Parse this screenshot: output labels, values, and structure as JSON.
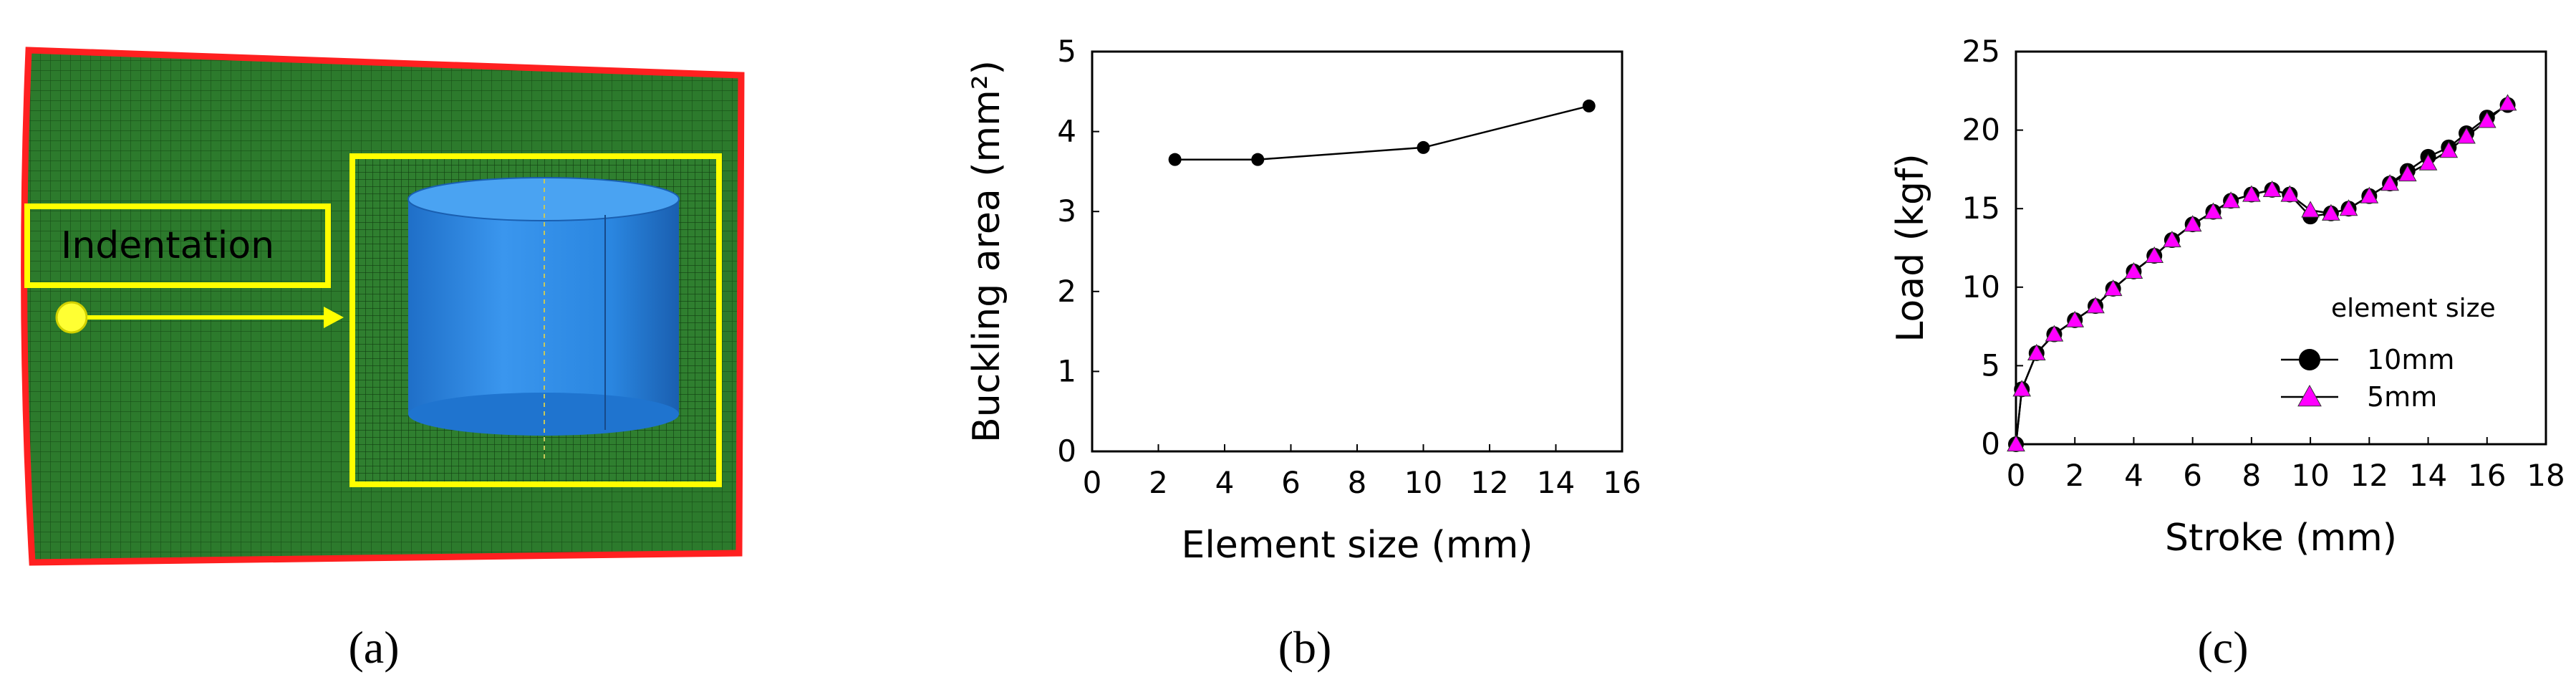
{
  "colors": {
    "mesh_green": "#2c7a2c",
    "mesh_line": "#174f17",
    "boundary_red": "#ff2020",
    "highlight_yellow": "#ffff00",
    "cylinder_blue": "#2a86e0",
    "point_black": "#000000",
    "point_magenta": "#ff00ff"
  },
  "panels": {
    "a": {
      "caption": "(a)",
      "indentation_label": "Indentation"
    },
    "b": {
      "caption": "(b)"
    },
    "c": {
      "caption": "(c)"
    }
  },
  "chart_data": [
    {
      "panel": "b",
      "type": "line",
      "xlabel": "Element size (mm)",
      "ylabel": "Buckling area (mm²)",
      "xlim": [
        0,
        16
      ],
      "ylim": [
        0,
        5
      ],
      "xticks": [
        "0",
        "2",
        "4",
        "6",
        "8",
        "10",
        "12",
        "14",
        "16"
      ],
      "yticks": [
        "0",
        "1",
        "2",
        "3",
        "4",
        "5"
      ],
      "grid": false,
      "series": [
        {
          "marker": "circle",
          "color": "#000000",
          "x": [
            2.5,
            5,
            10,
            15
          ],
          "y": [
            3.65,
            3.65,
            3.8,
            4.32
          ]
        }
      ]
    },
    {
      "panel": "c",
      "type": "line",
      "xlabel": "Stroke (mm)",
      "ylabel": "Load (kgf)",
      "xlim": [
        0,
        18
      ],
      "ylim": [
        0,
        25
      ],
      "xticks": [
        "0",
        "2",
        "4",
        "6",
        "8",
        "10",
        "12",
        "14",
        "16",
        "18"
      ],
      "yticks": [
        "0",
        "5",
        "10",
        "15",
        "20",
        "25"
      ],
      "grid": false,
      "legend": {
        "title": "element size",
        "placement": "lower-right"
      },
      "series": [
        {
          "name": "10mm",
          "marker": "circle",
          "color": "#000000",
          "x": [
            0,
            0.2,
            0.7,
            1.3,
            2.0,
            2.7,
            3.3,
            4.0,
            4.7,
            5.3,
            6.0,
            6.7,
            7.3,
            8.0,
            8.7,
            9.3,
            10.0,
            10.7,
            11.3,
            12.0,
            12.7,
            13.3,
            14.0,
            14.7,
            15.3,
            16.0,
            16.7
          ],
          "y": [
            0,
            3.5,
            5.8,
            7.0,
            7.9,
            8.8,
            9.9,
            11.0,
            12.0,
            13.0,
            14.0,
            14.8,
            15.5,
            15.9,
            16.2,
            15.9,
            14.5,
            14.7,
            15.0,
            15.8,
            16.6,
            17.4,
            18.3,
            18.9,
            19.8,
            20.8,
            21.6
          ]
        },
        {
          "name": "5mm",
          "marker": "triangle",
          "color": "#ff00ff",
          "x": [
            0,
            0.2,
            0.7,
            1.3,
            2.0,
            2.7,
            3.3,
            4.0,
            4.7,
            5.3,
            6.0,
            6.7,
            7.3,
            8.0,
            8.7,
            9.3,
            10.0,
            10.7,
            11.3,
            12.0,
            12.7,
            13.3,
            14.0,
            14.7,
            15.3,
            16.0,
            16.7
          ],
          "y": [
            0,
            3.5,
            5.8,
            7.0,
            7.9,
            8.8,
            9.9,
            11.0,
            12.0,
            13.0,
            14.0,
            14.8,
            15.5,
            15.9,
            16.2,
            15.9,
            14.9,
            14.7,
            15.0,
            15.8,
            16.6,
            17.2,
            17.9,
            18.7,
            19.6,
            20.6,
            21.7
          ]
        }
      ]
    }
  ]
}
